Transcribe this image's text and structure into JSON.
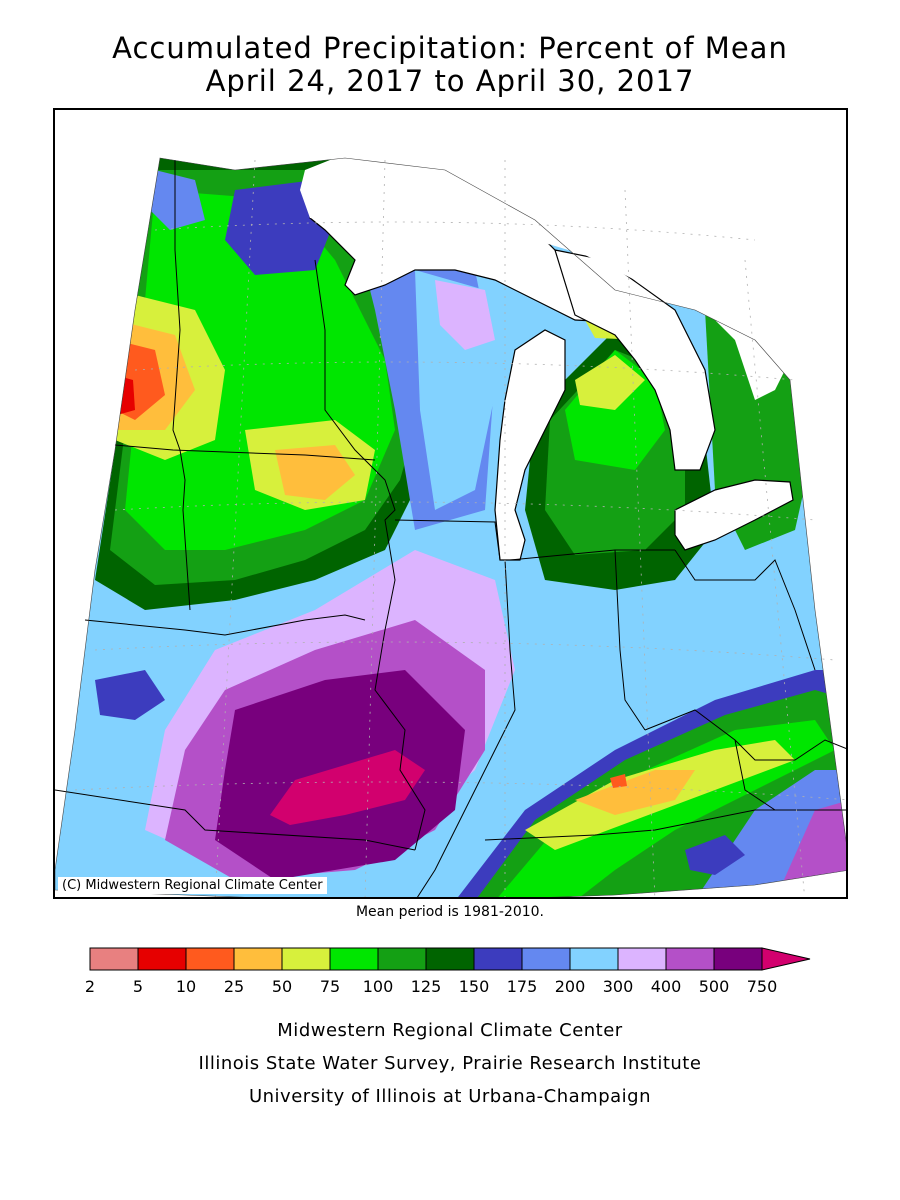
{
  "title": {
    "line1": "Accumulated Precipitation: Percent of Mean",
    "line2": "April 24, 2017 to April 30, 2017"
  },
  "map": {
    "copyright": "(C) Midwestern Regional Climate Center",
    "mean_period": "Mean period is 1981-2010."
  },
  "legend": {
    "bins": [
      {
        "color": "#e88080"
      },
      {
        "color": "#e60000"
      },
      {
        "color": "#ff5a1e"
      },
      {
        "color": "#ffbe3c"
      },
      {
        "color": "#d7f03c"
      },
      {
        "color": "#00e600"
      },
      {
        "color": "#14a014"
      },
      {
        "color": "#006400"
      },
      {
        "color": "#3c3cbe"
      },
      {
        "color": "#6488f0"
      },
      {
        "color": "#82d2ff"
      },
      {
        "color": "#dcb4ff"
      },
      {
        "color": "#b450c8"
      },
      {
        "color": "#78007d"
      },
      {
        "color": "#d2006e"
      }
    ],
    "tick_labels": [
      "2",
      "5",
      "10",
      "25",
      "50",
      "75",
      "100",
      "125",
      "150",
      "175",
      "200",
      "300",
      "400",
      "500",
      "750"
    ]
  },
  "credits": [
    "Midwestern Regional Climate Center",
    "Illinois State Water Survey, Prairie Research Institute",
    "University of Illinois at Urbana-Champaign"
  ]
}
